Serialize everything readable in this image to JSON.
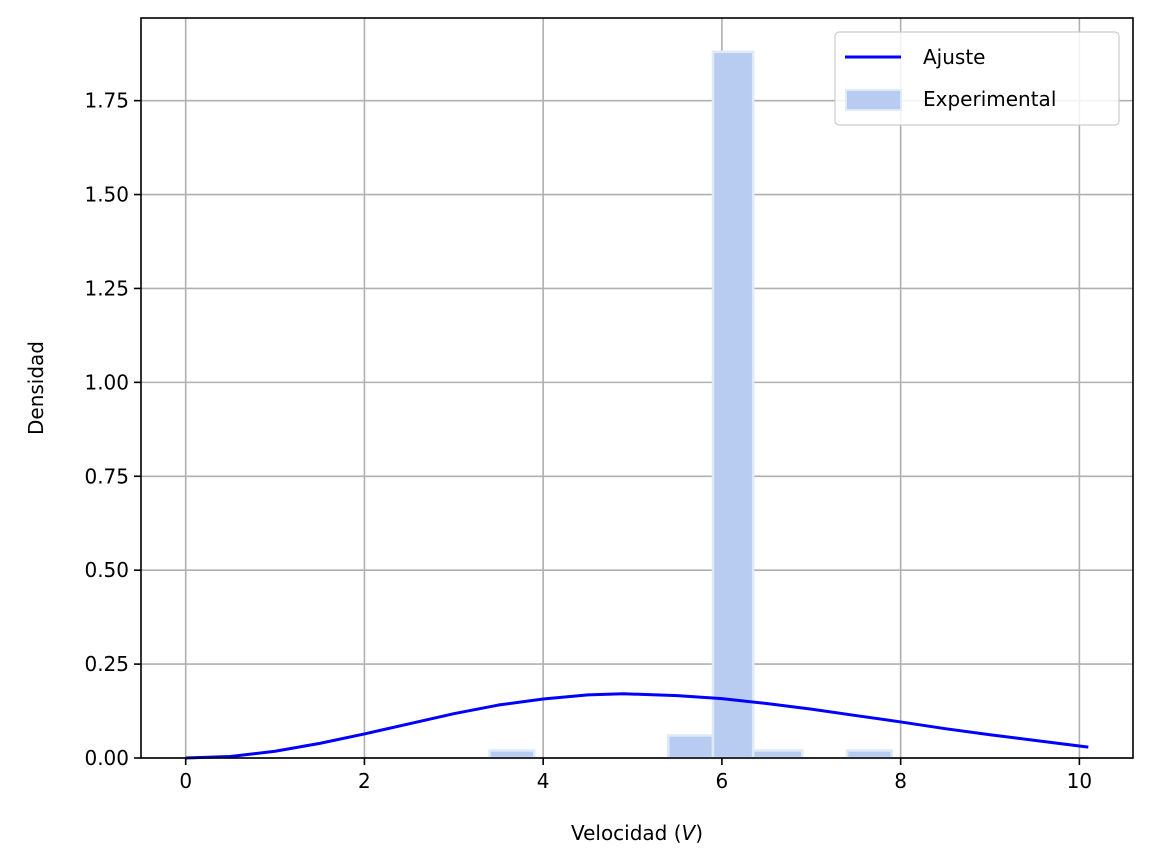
{
  "chart_data": {
    "type": "bar",
    "xlabel_prefix": "Velocidad (",
    "xlabel_var": "V",
    "xlabel_suffix": ")",
    "ylabel": "Densidad",
    "xlim": [
      -0.5,
      10.6
    ],
    "ylim": [
      0,
      1.97
    ],
    "xticks": [
      0,
      2,
      4,
      6,
      8,
      10
    ],
    "yticks": [
      0.0,
      0.25,
      0.5,
      0.75,
      1.0,
      1.25,
      1.5,
      1.75
    ],
    "ytick_labels": [
      "0.00",
      "0.25",
      "0.50",
      "0.75",
      "1.00",
      "1.25",
      "1.50",
      "1.75"
    ],
    "grid": true,
    "legend_position": "top-right",
    "series": [
      {
        "name": "Ajuste",
        "kind": "line",
        "color": "#0000ff",
        "x": [
          0,
          0.5,
          1,
          1.5,
          2,
          2.5,
          3,
          3.5,
          4,
          4.5,
          4.9,
          5.5,
          6,
          6.5,
          7,
          7.5,
          8,
          8.5,
          9,
          9.5,
          10.1
        ],
        "y": [
          0,
          0.004,
          0.018,
          0.039,
          0.064,
          0.091,
          0.118,
          0.141,
          0.157,
          0.168,
          0.171,
          0.166,
          0.158,
          0.145,
          0.13,
          0.113,
          0.096,
          0.078,
          0.062,
          0.047,
          0.029
        ]
      },
      {
        "name": "Experimental",
        "kind": "hist",
        "color": "#b8cbf1",
        "edge_color": "#deeaf5",
        "bins": [
          {
            "x0": 3.4,
            "x1": 3.9,
            "value": 0.02
          },
          {
            "x0": 5.4,
            "x1": 5.9,
            "value": 0.06
          },
          {
            "x0": 5.9,
            "x1": 6.35,
            "value": 1.88
          },
          {
            "x0": 6.35,
            "x1": 6.9,
            "value": 0.02
          },
          {
            "x0": 7.4,
            "x1": 7.9,
            "value": 0.02
          }
        ]
      }
    ]
  }
}
